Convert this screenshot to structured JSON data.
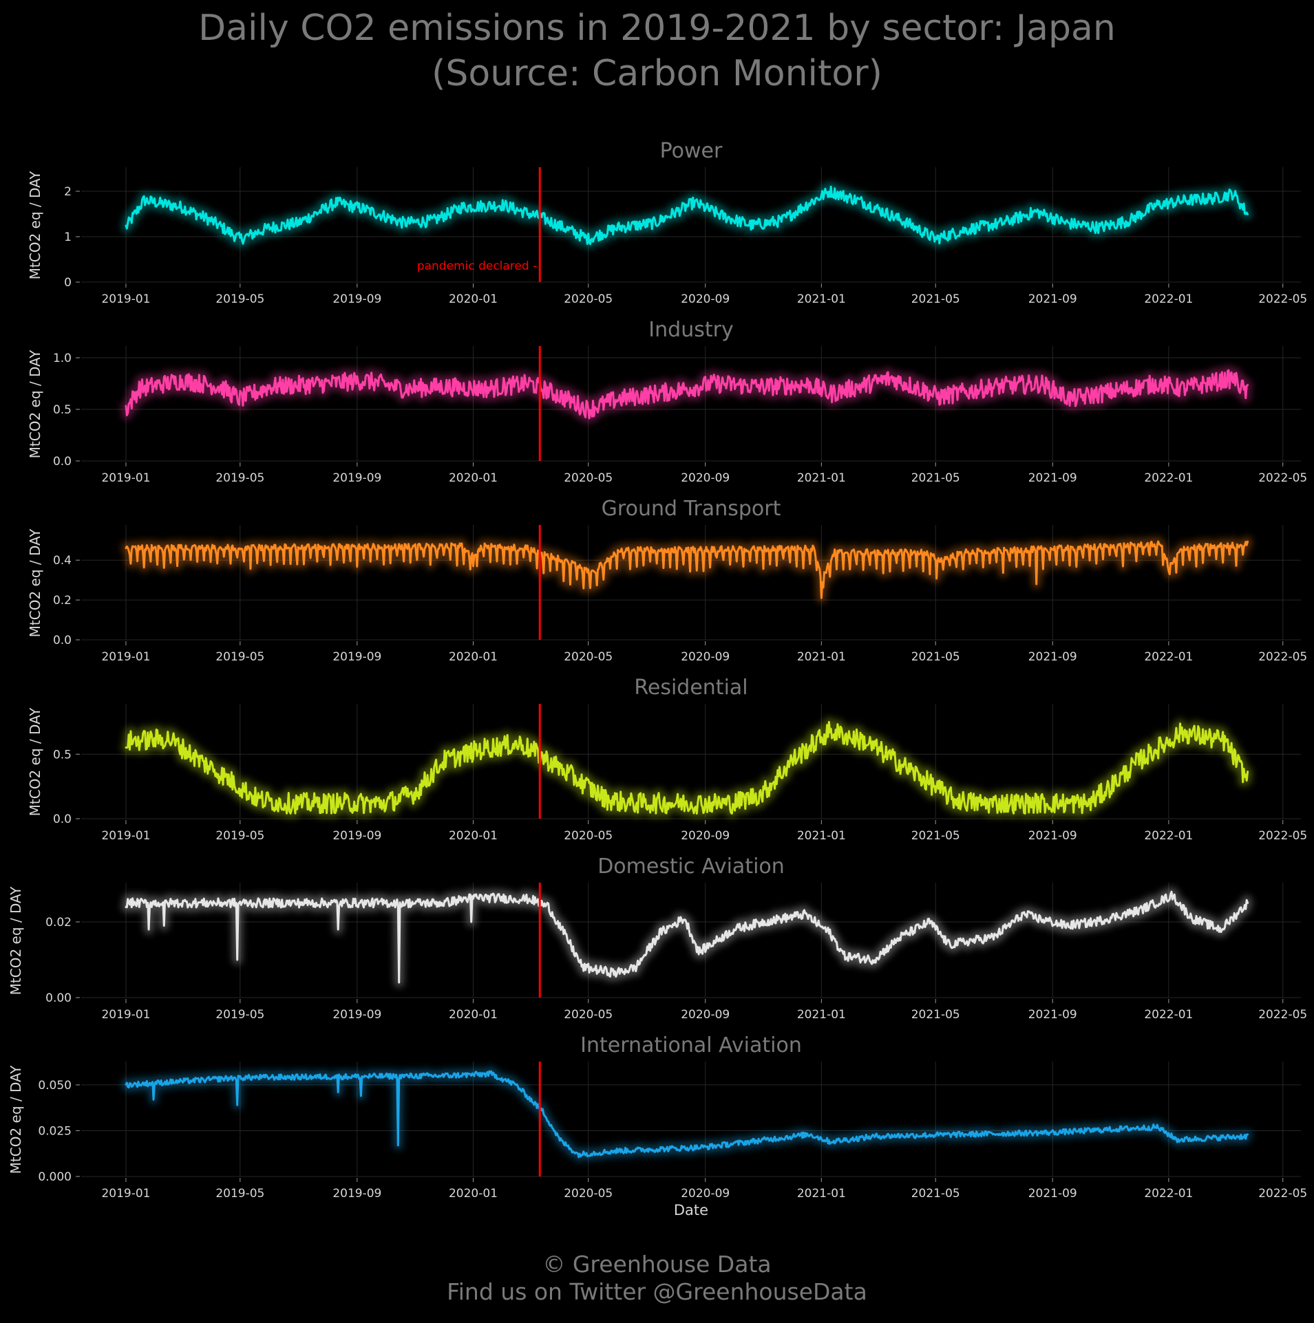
{
  "title_line1": "Daily CO2 emissions in 2019-2021 by sector: Japan",
  "title_line2": "(Source: Carbon Monitor)",
  "footer_line1": "© Greenhouse Data",
  "footer_line2": "Find us on Twitter @GreenhouseData",
  "chart_data": {
    "type": "line",
    "x_label": "Date",
    "y_label": "MtCO2 eq / DAY",
    "x_range": [
      "2018-11-15",
      "2022-05-20"
    ],
    "x_ticks": [
      "2019-01",
      "2019-05",
      "2019-09",
      "2020-01",
      "2020-05",
      "2020-09",
      "2021-01",
      "2021-05",
      "2021-09",
      "2022-01",
      "2022-05"
    ],
    "grid": true,
    "annotation": {
      "label": "pandemic declared -",
      "date": "2020-03-11",
      "color": "#ff0000"
    },
    "panels": [
      {
        "name": "Power",
        "color": "#00e5e0",
        "ylim": [
          0,
          2.5
        ],
        "yticks": [
          "0",
          "1",
          "2"
        ],
        "anchors": [
          [
            "2019-01-01",
            1.2
          ],
          [
            "2019-01-20",
            1.8
          ],
          [
            "2019-03-01",
            1.65
          ],
          [
            "2019-04-01",
            1.35
          ],
          [
            "2019-05-01",
            0.95
          ],
          [
            "2019-06-01",
            1.2
          ],
          [
            "2019-07-01",
            1.3
          ],
          [
            "2019-08-10",
            1.75
          ],
          [
            "2019-09-10",
            1.6
          ],
          [
            "2019-10-20",
            1.3
          ],
          [
            "2019-11-20",
            1.35
          ],
          [
            "2019-12-20",
            1.65
          ],
          [
            "2020-02-01",
            1.7
          ],
          [
            "2020-03-15",
            1.4
          ],
          [
            "2020-05-01",
            0.95
          ],
          [
            "2020-06-01",
            1.2
          ],
          [
            "2020-07-10",
            1.3
          ],
          [
            "2020-08-20",
            1.75
          ],
          [
            "2020-09-20",
            1.45
          ],
          [
            "2020-10-20",
            1.25
          ],
          [
            "2020-11-20",
            1.35
          ],
          [
            "2020-12-20",
            1.75
          ],
          [
            "2021-01-10",
            2.0
          ],
          [
            "2021-02-15",
            1.75
          ],
          [
            "2021-04-01",
            1.3
          ],
          [
            "2021-05-01",
            0.95
          ],
          [
            "2021-06-01",
            1.15
          ],
          [
            "2021-07-10",
            1.3
          ],
          [
            "2021-08-15",
            1.55
          ],
          [
            "2021-09-15",
            1.3
          ],
          [
            "2021-10-20",
            1.2
          ],
          [
            "2021-11-20",
            1.35
          ],
          [
            "2021-12-20",
            1.7
          ],
          [
            "2022-01-20",
            1.8
          ],
          [
            "2022-02-20",
            1.85
          ],
          [
            "2022-03-10",
            1.95
          ],
          [
            "2022-03-25",
            1.5
          ]
        ],
        "noise": 0.13,
        "spikes": []
      },
      {
        "name": "Industry",
        "color": "#ff3fa6",
        "ylim": [
          0,
          1.1
        ],
        "yticks": [
          "0.0",
          "0.5",
          "1.0"
        ],
        "anchors": [
          [
            "2019-01-01",
            0.5
          ],
          [
            "2019-01-15",
            0.7
          ],
          [
            "2019-03-01",
            0.78
          ],
          [
            "2019-04-10",
            0.72
          ],
          [
            "2019-05-01",
            0.6
          ],
          [
            "2019-06-01",
            0.72
          ],
          [
            "2019-08-01",
            0.75
          ],
          [
            "2019-09-10",
            0.78
          ],
          [
            "2019-10-20",
            0.7
          ],
          [
            "2019-12-01",
            0.72
          ],
          [
            "2020-01-15",
            0.7
          ],
          [
            "2020-03-01",
            0.75
          ],
          [
            "2020-04-01",
            0.63
          ],
          [
            "2020-05-01",
            0.5
          ],
          [
            "2020-06-01",
            0.6
          ],
          [
            "2020-08-01",
            0.68
          ],
          [
            "2020-09-10",
            0.75
          ],
          [
            "2020-11-01",
            0.72
          ],
          [
            "2020-12-20",
            0.74
          ],
          [
            "2021-01-10",
            0.65
          ],
          [
            "2021-03-15",
            0.8
          ],
          [
            "2021-04-15",
            0.7
          ],
          [
            "2021-05-05",
            0.62
          ],
          [
            "2021-07-01",
            0.72
          ],
          [
            "2021-08-20",
            0.75
          ],
          [
            "2021-09-20",
            0.6
          ],
          [
            "2021-11-01",
            0.67
          ],
          [
            "2021-12-20",
            0.75
          ],
          [
            "2022-01-15",
            0.7
          ],
          [
            "2022-03-10",
            0.8
          ],
          [
            "2022-03-25",
            0.65
          ]
        ],
        "noise": 0.09,
        "spikes": []
      },
      {
        "name": "Ground Transport",
        "color": "#ff8a1f",
        "ylim": [
          0,
          0.57
        ],
        "yticks": [
          "0.0",
          "0.2",
          "0.4"
        ],
        "anchors": [
          [
            "2019-01-01",
            0.46
          ],
          [
            "2019-12-20",
            0.47
          ],
          [
            "2020-01-01",
            0.42
          ],
          [
            "2020-01-10",
            0.47
          ],
          [
            "2020-03-01",
            0.46
          ],
          [
            "2020-04-15",
            0.38
          ],
          [
            "2020-05-05",
            0.34
          ],
          [
            "2020-06-01",
            0.45
          ],
          [
            "2020-12-25",
            0.46
          ],
          [
            "2021-01-01",
            0.3
          ],
          [
            "2021-01-15",
            0.44
          ],
          [
            "2021-04-20",
            0.44
          ],
          [
            "2021-05-05",
            0.4
          ],
          [
            "2021-06-01",
            0.44
          ],
          [
            "2021-12-25",
            0.48
          ],
          [
            "2022-01-01",
            0.36
          ],
          [
            "2022-01-15",
            0.46
          ],
          [
            "2022-03-25",
            0.48
          ]
        ],
        "noise": 0.015,
        "weekly_dip": 0.05,
        "spikes": [
          [
            "2020-01-01",
            0.37
          ],
          [
            "2020-05-03",
            0.26
          ],
          [
            "2021-01-01",
            0.21
          ],
          [
            "2021-08-15",
            0.28
          ],
          [
            "2022-01-02",
            0.33
          ]
        ]
      },
      {
        "name": "Residential",
        "color": "#c8e619",
        "ylim": [
          0,
          0.88
        ],
        "yticks": [
          "0.0",
          "0.5"
        ],
        "anchors": [
          [
            "2019-01-01",
            0.6
          ],
          [
            "2019-02-15",
            0.62
          ],
          [
            "2019-03-20",
            0.45
          ],
          [
            "2019-04-20",
            0.3
          ],
          [
            "2019-05-20",
            0.15
          ],
          [
            "2019-06-15",
            0.12
          ],
          [
            "2019-10-01",
            0.12
          ],
          [
            "2019-11-01",
            0.2
          ],
          [
            "2019-12-01",
            0.45
          ],
          [
            "2020-01-15",
            0.55
          ],
          [
            "2020-02-20",
            0.58
          ],
          [
            "2020-03-20",
            0.45
          ],
          [
            "2020-04-20",
            0.3
          ],
          [
            "2020-05-20",
            0.15
          ],
          [
            "2020-06-15",
            0.12
          ],
          [
            "2020-10-01",
            0.12
          ],
          [
            "2020-11-01",
            0.2
          ],
          [
            "2020-12-01",
            0.45
          ],
          [
            "2021-01-10",
            0.68
          ],
          [
            "2021-02-15",
            0.6
          ],
          [
            "2021-03-20",
            0.45
          ],
          [
            "2021-04-20",
            0.3
          ],
          [
            "2021-05-20",
            0.15
          ],
          [
            "2021-06-15",
            0.12
          ],
          [
            "2021-10-10",
            0.12
          ],
          [
            "2021-11-01",
            0.25
          ],
          [
            "2021-12-01",
            0.45
          ],
          [
            "2022-01-15",
            0.67
          ],
          [
            "2022-03-01",
            0.6
          ],
          [
            "2022-03-25",
            0.3
          ]
        ],
        "noise": 0.08,
        "spikes": []
      },
      {
        "name": "Domestic Aviation",
        "color": "#e6e6e6",
        "ylim": [
          0,
          0.03
        ],
        "yticks": [
          "0.00",
          "0.02"
        ],
        "anchors": [
          [
            "2019-01-01",
            0.025
          ],
          [
            "2019-12-01",
            0.025
          ],
          [
            "2020-01-01",
            0.0265
          ],
          [
            "2020-03-01",
            0.026
          ],
          [
            "2020-03-20",
            0.024
          ],
          [
            "2020-04-10",
            0.015
          ],
          [
            "2020-04-25",
            0.008
          ],
          [
            "2020-05-30",
            0.0065
          ],
          [
            "2020-06-20",
            0.008
          ],
          [
            "2020-07-15",
            0.017
          ],
          [
            "2020-08-10",
            0.021
          ],
          [
            "2020-08-25",
            0.012
          ],
          [
            "2020-10-01",
            0.018
          ],
          [
            "2020-11-01",
            0.02
          ],
          [
            "2020-12-15",
            0.022
          ],
          [
            "2021-01-10",
            0.017
          ],
          [
            "2021-01-25",
            0.011
          ],
          [
            "2021-02-25",
            0.01
          ],
          [
            "2021-03-25",
            0.016
          ],
          [
            "2021-04-25",
            0.02
          ],
          [
            "2021-05-15",
            0.014
          ],
          [
            "2021-07-01",
            0.016
          ],
          [
            "2021-08-01",
            0.022
          ],
          [
            "2021-09-15",
            0.019
          ],
          [
            "2021-10-15",
            0.02
          ],
          [
            "2021-12-01",
            0.023
          ],
          [
            "2022-01-05",
            0.027
          ],
          [
            "2022-01-25",
            0.021
          ],
          [
            "2022-02-25",
            0.018
          ],
          [
            "2022-03-25",
            0.025
          ]
        ],
        "noise": 0.0012,
        "spikes": [
          [
            "2019-01-25",
            0.018
          ],
          [
            "2019-02-10",
            0.019
          ],
          [
            "2019-04-28",
            0.01
          ],
          [
            "2019-08-12",
            0.018
          ],
          [
            "2019-10-15",
            0.004
          ],
          [
            "2019-12-30",
            0.02
          ]
        ]
      },
      {
        "name": "International Aviation",
        "color": "#1aa4e8",
        "ylim": [
          0,
          0.062
        ],
        "yticks": [
          "0.000",
          "0.025",
          "0.050"
        ],
        "anchors": [
          [
            "2019-01-01",
            0.05
          ],
          [
            "2019-05-01",
            0.054
          ],
          [
            "2019-12-01",
            0.055
          ],
          [
            "2020-01-20",
            0.056
          ],
          [
            "2020-02-15",
            0.05
          ],
          [
            "2020-03-15",
            0.035
          ],
          [
            "2020-04-01",
            0.02
          ],
          [
            "2020-04-20",
            0.012
          ],
          [
            "2020-06-01",
            0.014
          ],
          [
            "2020-09-01",
            0.016
          ],
          [
            "2020-12-20",
            0.023
          ],
          [
            "2021-01-10",
            0.019
          ],
          [
            "2021-03-01",
            0.022
          ],
          [
            "2021-06-01",
            0.023
          ],
          [
            "2021-09-01",
            0.024
          ],
          [
            "2021-12-20",
            0.027
          ],
          [
            "2022-01-10",
            0.02
          ],
          [
            "2022-03-25",
            0.022
          ]
        ],
        "noise": 0.0015,
        "spikes": [
          [
            "2019-01-30",
            0.042
          ],
          [
            "2019-04-28",
            0.039
          ],
          [
            "2019-08-12",
            0.046
          ],
          [
            "2019-09-05",
            0.044
          ],
          [
            "2019-10-14",
            0.017
          ]
        ]
      }
    ]
  }
}
